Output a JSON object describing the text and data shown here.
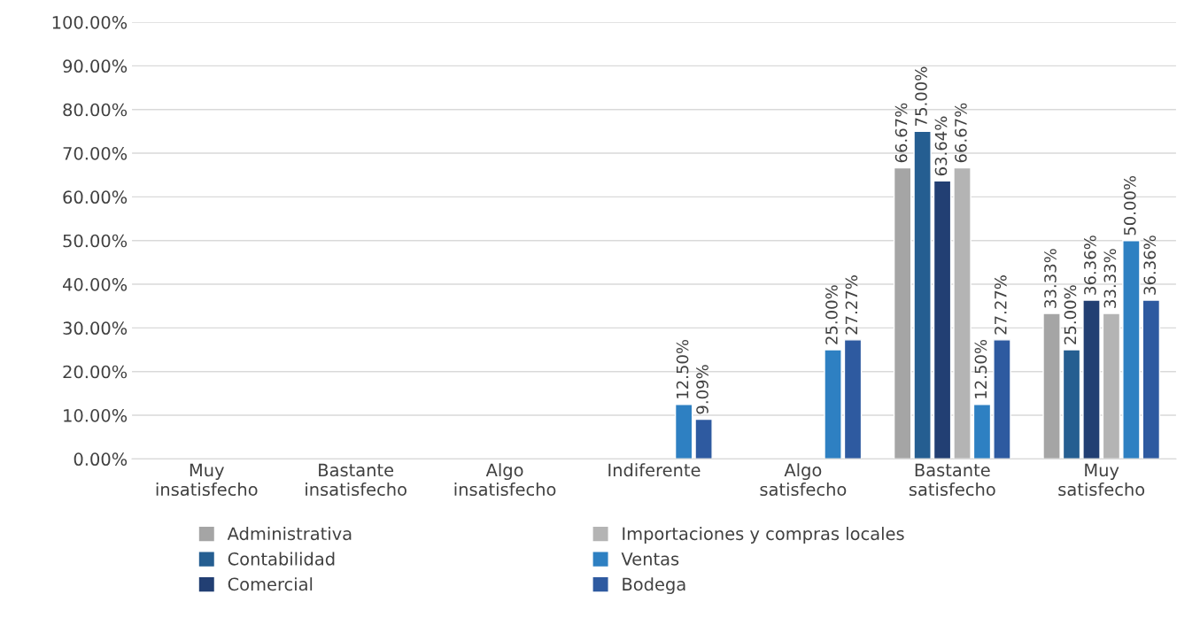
{
  "chart_data": {
    "type": "bar",
    "categories": [
      "Muy\ninsatisfecho",
      "Bastante\ninsatisfecho",
      "Algo\ninsatisfecho",
      "Indiferente",
      "Algo\nsatisfecho",
      "Bastante\nsatisfecho",
      "Muy\nsatisfecho"
    ],
    "series": [
      {
        "name": "Administrativa",
        "color": "#a5a5a5",
        "values": [
          null,
          null,
          null,
          null,
          null,
          66.67,
          33.33
        ],
        "value_labels": [
          null,
          null,
          null,
          null,
          null,
          "66.67%",
          "33.33%"
        ]
      },
      {
        "name": "Contabilidad",
        "color": "#255e91",
        "values": [
          null,
          null,
          null,
          null,
          null,
          75.0,
          25.0
        ],
        "value_labels": [
          null,
          null,
          null,
          null,
          null,
          "75.00%",
          "25.00%"
        ]
      },
      {
        "name": "Comercial",
        "color": "#223f73",
        "values": [
          null,
          null,
          null,
          null,
          null,
          63.64,
          36.36
        ],
        "value_labels": [
          null,
          null,
          null,
          null,
          null,
          "63.64%",
          "36.36%"
        ]
      },
      {
        "name": "Importaciones y compras locales",
        "color": "#b4b4b4",
        "values": [
          null,
          null,
          null,
          null,
          null,
          66.67,
          33.33
        ],
        "value_labels": [
          null,
          null,
          null,
          null,
          null,
          "66.67%",
          "33.33%"
        ]
      },
      {
        "name": "Ventas",
        "color": "#2e80c2",
        "values": [
          null,
          null,
          null,
          12.5,
          25.0,
          12.5,
          50.0
        ],
        "value_labels": [
          null,
          null,
          null,
          "12.50%",
          "25.00%",
          "12.50%",
          "50.00%"
        ]
      },
      {
        "name": "Bodega",
        "color": "#2e5aa0",
        "values": [
          null,
          null,
          null,
          9.09,
          27.27,
          27.27,
          36.36
        ],
        "value_labels": [
          null,
          null,
          null,
          "9.09%",
          "27.27%",
          "27.27%",
          "36.36%"
        ]
      }
    ],
    "ylim": [
      0,
      100
    ],
    "yticks": [
      {
        "value": 0,
        "label": "0.00%"
      },
      {
        "value": 10,
        "label": "10.00%"
      },
      {
        "value": 20,
        "label": "20.00%"
      },
      {
        "value": 30,
        "label": "30.00%"
      },
      {
        "value": 40,
        "label": "40.00%"
      },
      {
        "value": 50,
        "label": "50.00%"
      },
      {
        "value": 60,
        "label": "60.00%"
      },
      {
        "value": 70,
        "label": "70.00%"
      },
      {
        "value": 80,
        "label": "80.00%"
      },
      {
        "value": 90,
        "label": "90.00%"
      },
      {
        "value": 100,
        "label": "100.00%"
      }
    ],
    "grid": "y",
    "legend": "bottom"
  }
}
